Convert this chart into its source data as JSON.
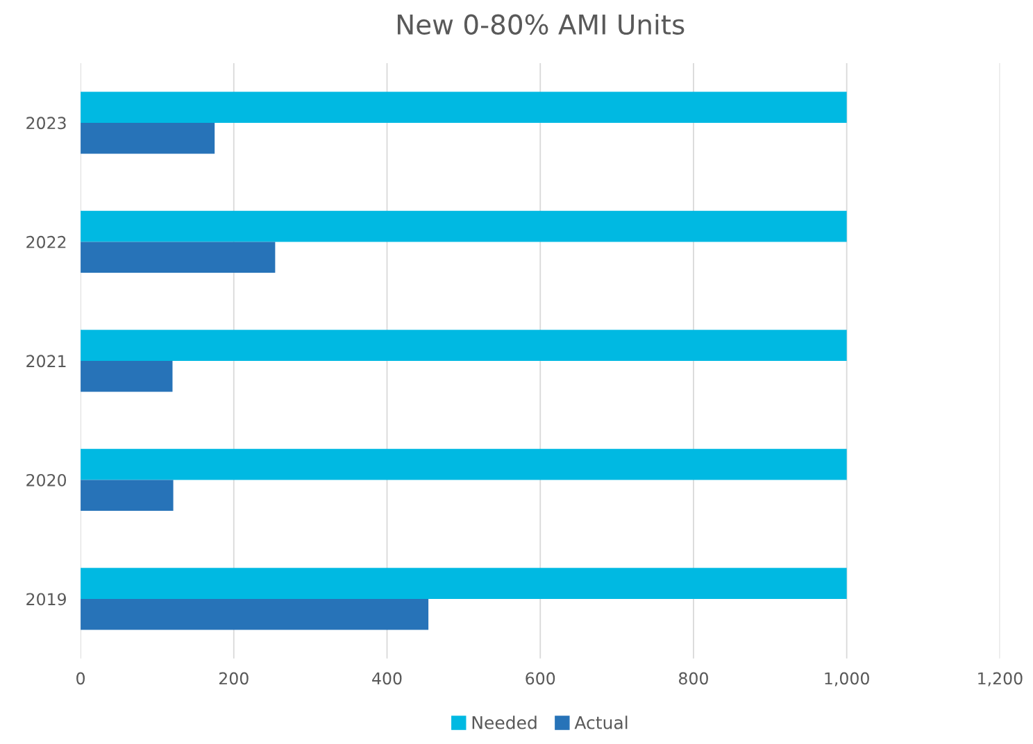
{
  "chart_data": {
    "type": "bar",
    "orientation": "horizontal",
    "title": "New 0-80% AMI Units",
    "categories": [
      "2023",
      "2022",
      "2021",
      "2020",
      "2019"
    ],
    "series": [
      {
        "name": "Needed",
        "color": "#00b9e2",
        "values": [
          1000,
          1000,
          1000,
          1000,
          1000
        ]
      },
      {
        "name": "Actual",
        "color": "#2773b8",
        "values": [
          175,
          254,
          120,
          121,
          454
        ]
      }
    ],
    "xlim": [
      0,
      1200
    ],
    "xticks": [
      0,
      200,
      400,
      600,
      800,
      {
        "value": 1000,
        "label": "1,000"
      },
      {
        "value": 1200,
        "label": "1,200"
      }
    ],
    "grid": "x",
    "legend": "bottom"
  }
}
